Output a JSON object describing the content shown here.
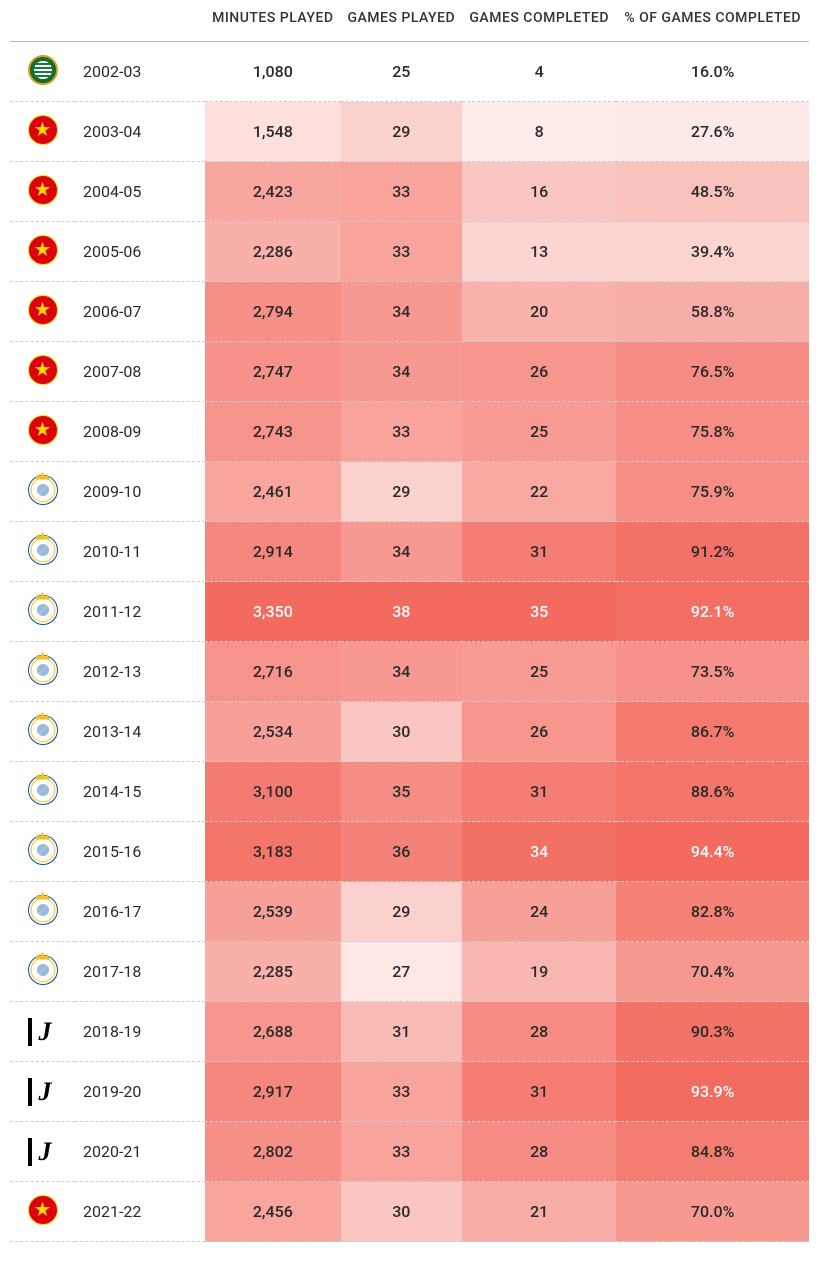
{
  "headers": {
    "minutes": "MINUTES PLAYED",
    "games_played": "GAMES PLAYED",
    "games_completed": "GAMES COMPLETED",
    "pct_completed": "% OF GAMES COMPLETED"
  },
  "clubs": {
    "sporting": {
      "icon_class": "logo-sporting",
      "label": "Sporting CP"
    },
    "manu": {
      "icon_class": "logo-manu",
      "label": "Manchester United"
    },
    "real": {
      "icon_class": "logo-real",
      "label": "Real Madrid"
    },
    "juve": {
      "icon_class": "logo-juve",
      "label": "Juventus"
    }
  },
  "heatmap": {
    "columns": [
      {
        "key": "minutes",
        "min": 1080,
        "max": 3350
      },
      {
        "key": "games_played",
        "min": 25,
        "max": 38
      },
      {
        "key": "games_completed",
        "min": 4,
        "max": 35
      },
      {
        "key": "pct_completed",
        "min": 16.0,
        "max": 94.4
      }
    ],
    "color_low": "#ffffff",
    "color_high": "#f36b5f",
    "text_color_dark": "#2a2a2a",
    "text_color_light": "#ffffff",
    "light_text_threshold": 0.96
  },
  "rows": [
    {
      "club": "sporting",
      "season": "2002-03",
      "minutes": 1080,
      "minutes_fmt": "1,080",
      "games_played": 25,
      "games_completed": 4,
      "pct_completed": 16.0,
      "pct_fmt": "16.0%",
      "first_row_white": true
    },
    {
      "club": "manu",
      "season": "2003-04",
      "minutes": 1548,
      "minutes_fmt": "1,548",
      "games_played": 29,
      "games_completed": 8,
      "pct_completed": 27.6,
      "pct_fmt": "27.6%"
    },
    {
      "club": "manu",
      "season": "2004-05",
      "minutes": 2423,
      "minutes_fmt": "2,423",
      "games_played": 33,
      "games_completed": 16,
      "pct_completed": 48.5,
      "pct_fmt": "48.5%"
    },
    {
      "club": "manu",
      "season": "2005-06",
      "minutes": 2286,
      "minutes_fmt": "2,286",
      "games_played": 33,
      "games_completed": 13,
      "pct_completed": 39.4,
      "pct_fmt": "39.4%"
    },
    {
      "club": "manu",
      "season": "2006-07",
      "minutes": 2794,
      "minutes_fmt": "2,794",
      "games_played": 34,
      "games_completed": 20,
      "pct_completed": 58.8,
      "pct_fmt": "58.8%"
    },
    {
      "club": "manu",
      "season": "2007-08",
      "minutes": 2747,
      "minutes_fmt": "2,747",
      "games_played": 34,
      "games_completed": 26,
      "pct_completed": 76.5,
      "pct_fmt": "76.5%"
    },
    {
      "club": "manu",
      "season": "2008-09",
      "minutes": 2743,
      "minutes_fmt": "2,743",
      "games_played": 33,
      "games_completed": 25,
      "pct_completed": 75.8,
      "pct_fmt": "75.8%"
    },
    {
      "club": "real",
      "season": "2009-10",
      "minutes": 2461,
      "minutes_fmt": "2,461",
      "games_played": 29,
      "games_completed": 22,
      "pct_completed": 75.9,
      "pct_fmt": "75.9%"
    },
    {
      "club": "real",
      "season": "2010-11",
      "minutes": 2914,
      "minutes_fmt": "2,914",
      "games_played": 34,
      "games_completed": 31,
      "pct_completed": 91.2,
      "pct_fmt": "91.2%"
    },
    {
      "club": "real",
      "season": "2011-12",
      "minutes": 3350,
      "minutes_fmt": "3,350",
      "games_played": 38,
      "games_completed": 35,
      "pct_completed": 92.1,
      "pct_fmt": "92.1%"
    },
    {
      "club": "real",
      "season": "2012-13",
      "minutes": 2716,
      "minutes_fmt": "2,716",
      "games_played": 34,
      "games_completed": 25,
      "pct_completed": 73.5,
      "pct_fmt": "73.5%"
    },
    {
      "club": "real",
      "season": "2013-14",
      "minutes": 2534,
      "minutes_fmt": "2,534",
      "games_played": 30,
      "games_completed": 26,
      "pct_completed": 86.7,
      "pct_fmt": "86.7%"
    },
    {
      "club": "real",
      "season": "2014-15",
      "minutes": 3100,
      "minutes_fmt": "3,100",
      "games_played": 35,
      "games_completed": 31,
      "pct_completed": 88.6,
      "pct_fmt": "88.6%"
    },
    {
      "club": "real",
      "season": "2015-16",
      "minutes": 3183,
      "minutes_fmt": "3,183",
      "games_played": 36,
      "games_completed": 34,
      "pct_completed": 94.4,
      "pct_fmt": "94.4%"
    },
    {
      "club": "real",
      "season": "2016-17",
      "minutes": 2539,
      "minutes_fmt": "2,539",
      "games_played": 29,
      "games_completed": 24,
      "pct_completed": 82.8,
      "pct_fmt": "82.8%"
    },
    {
      "club": "real",
      "season": "2017-18",
      "minutes": 2285,
      "minutes_fmt": "2,285",
      "games_played": 27,
      "games_completed": 19,
      "pct_completed": 70.4,
      "pct_fmt": "70.4%"
    },
    {
      "club": "juve",
      "season": "2018-19",
      "minutes": 2688,
      "minutes_fmt": "2,688",
      "games_played": 31,
      "games_completed": 28,
      "pct_completed": 90.3,
      "pct_fmt": "90.3%"
    },
    {
      "club": "juve",
      "season": "2019-20",
      "minutes": 2917,
      "minutes_fmt": "2,917",
      "games_played": 33,
      "games_completed": 31,
      "pct_completed": 93.9,
      "pct_fmt": "93.9%"
    },
    {
      "club": "juve",
      "season": "2020-21",
      "minutes": 2802,
      "minutes_fmt": "2,802",
      "games_played": 33,
      "games_completed": 28,
      "pct_completed": 84.8,
      "pct_fmt": "84.8%"
    },
    {
      "club": "manu",
      "season": "2021-22",
      "minutes": 2456,
      "minutes_fmt": "2,456",
      "games_played": 30,
      "games_completed": 21,
      "pct_completed": 70.0,
      "pct_fmt": "70.0%"
    }
  ]
}
